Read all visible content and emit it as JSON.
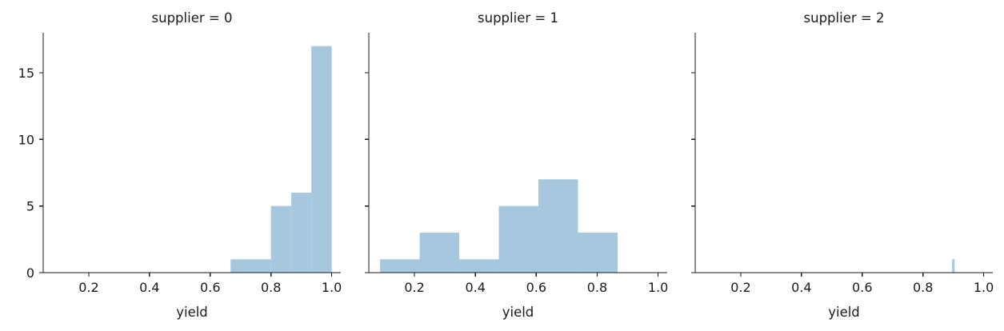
{
  "chart_data": [
    {
      "type": "bar",
      "title": "supplier = 0",
      "xlabel": "yield",
      "ylabel": "",
      "xlim": [
        0.05,
        1.03
      ],
      "ylim": [
        0,
        18
      ],
      "x_ticks": [
        "0.2",
        "0.4",
        "0.6",
        "0.8",
        "1.0"
      ],
      "y_ticks": [
        "0",
        "5",
        "10",
        "15"
      ],
      "bar_color": "#a5c8df",
      "bins": [
        {
          "x0": 0.667,
          "x1": 0.8,
          "value": 1
        },
        {
          "x0": 0.8,
          "x1": 0.867,
          "value": 5
        },
        {
          "x0": 0.867,
          "x1": 0.933,
          "value": 6
        },
        {
          "x0": 0.933,
          "x1": 1.0,
          "value": 17
        }
      ]
    },
    {
      "type": "bar",
      "title": "supplier = 1",
      "xlabel": "yield",
      "ylabel": "",
      "xlim": [
        0.05,
        1.03
      ],
      "ylim": [
        0,
        18
      ],
      "x_ticks": [
        "0.2",
        "0.4",
        "0.6",
        "0.8",
        "1.0"
      ],
      "y_ticks": [
        "",
        "",
        "",
        ""
      ],
      "bar_color": "#a5c8df",
      "bins": [
        {
          "x0": 0.087,
          "x1": 0.217,
          "value": 1
        },
        {
          "x0": 0.217,
          "x1": 0.347,
          "value": 3
        },
        {
          "x0": 0.347,
          "x1": 0.477,
          "value": 1
        },
        {
          "x0": 0.477,
          "x1": 0.607,
          "value": 5
        },
        {
          "x0": 0.607,
          "x1": 0.737,
          "value": 7
        },
        {
          "x0": 0.737,
          "x1": 0.867,
          "value": 3
        }
      ]
    },
    {
      "type": "bar",
      "title": "supplier = 2",
      "xlabel": "yield",
      "ylabel": "",
      "xlim": [
        0.05,
        1.03
      ],
      "ylim": [
        0,
        18
      ],
      "x_ticks": [
        "0.2",
        "0.4",
        "0.6",
        "0.8",
        "1.0"
      ],
      "y_ticks": [
        "",
        "",
        "",
        ""
      ],
      "bar_color": "#a5c8df",
      "bins": [
        {
          "x0": 0.896,
          "x1": 0.904,
          "value": 1
        }
      ]
    }
  ]
}
